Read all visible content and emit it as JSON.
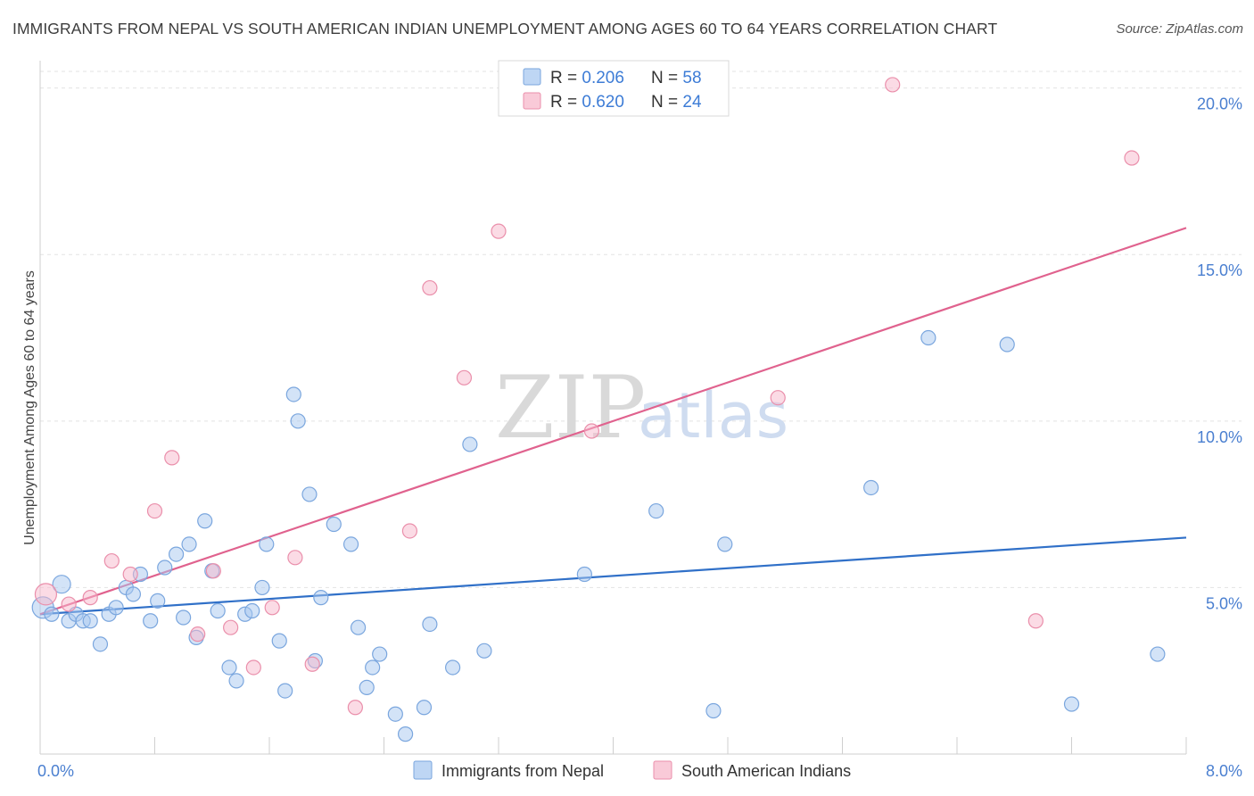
{
  "title": "IMMIGRANTS FROM NEPAL VS SOUTH AMERICAN INDIAN UNEMPLOYMENT AMONG AGES 60 TO 64 YEARS CORRELATION CHART",
  "source": "Source: ZipAtlas.com",
  "watermark": {
    "zip": "ZIP",
    "atlas": "atlas"
  },
  "chart_data": {
    "type": "scatter",
    "ylabel": "Unemployment Among Ages 60 to 64 years",
    "xlim": [
      0,
      8
    ],
    "ylim": [
      0,
      20.5
    ],
    "x_tick_labels": [
      {
        "value": 0,
        "label": "0.0%"
      },
      {
        "value": 8,
        "label": "8.0%"
      }
    ],
    "y_tick_labels": [
      {
        "value": 5,
        "label": "5.0%"
      },
      {
        "value": 10,
        "label": "10.0%"
      },
      {
        "value": 15,
        "label": "15.0%"
      },
      {
        "value": 20,
        "label": "20.0%"
      }
    ],
    "legend": [
      {
        "r_label": "R = ",
        "r": "0.206",
        "n_label": "N = ",
        "n": "58",
        "color": "#a8c8f0"
      },
      {
        "r_label": "R = ",
        "r": "0.620",
        "n_label": "N = ",
        "n": "24",
        "color": "#f7b8cb"
      }
    ],
    "series": [
      {
        "name": "Immigrants from Nepal",
        "color": "#a8c8f0",
        "stroke": "#7aa6de",
        "line_color": "#3070c8",
        "trend": [
          [
            0,
            4.2
          ],
          [
            8,
            6.5
          ]
        ],
        "points": [
          [
            0.02,
            4.4
          ],
          [
            0.08,
            4.2
          ],
          [
            0.15,
            5.1
          ],
          [
            0.2,
            4.0
          ],
          [
            0.25,
            4.2
          ],
          [
            0.3,
            4.0
          ],
          [
            0.35,
            4.0
          ],
          [
            0.42,
            3.3
          ],
          [
            0.48,
            4.2
          ],
          [
            0.53,
            4.4
          ],
          [
            0.6,
            5.0
          ],
          [
            0.65,
            4.8
          ],
          [
            0.7,
            5.4
          ],
          [
            0.77,
            4.0
          ],
          [
            0.82,
            4.6
          ],
          [
            0.87,
            5.6
          ],
          [
            0.95,
            6.0
          ],
          [
            1.0,
            4.1
          ],
          [
            1.04,
            6.3
          ],
          [
            1.09,
            3.5
          ],
          [
            1.15,
            7.0
          ],
          [
            1.2,
            5.5
          ],
          [
            1.24,
            4.3
          ],
          [
            1.32,
            2.6
          ],
          [
            1.37,
            2.2
          ],
          [
            1.43,
            4.2
          ],
          [
            1.48,
            4.3
          ],
          [
            1.55,
            5.0
          ],
          [
            1.58,
            6.3
          ],
          [
            1.67,
            3.4
          ],
          [
            1.71,
            1.9
          ],
          [
            1.77,
            10.8
          ],
          [
            1.8,
            10.0
          ],
          [
            1.88,
            7.8
          ],
          [
            1.92,
            2.8
          ],
          [
            1.96,
            4.7
          ],
          [
            2.05,
            6.9
          ],
          [
            2.17,
            6.3
          ],
          [
            2.22,
            3.8
          ],
          [
            2.28,
            2.0
          ],
          [
            2.32,
            2.6
          ],
          [
            2.37,
            3.0
          ],
          [
            2.48,
            1.2
          ],
          [
            2.55,
            0.6
          ],
          [
            2.68,
            1.4
          ],
          [
            2.72,
            3.9
          ],
          [
            2.88,
            2.6
          ],
          [
            3.0,
            9.3
          ],
          [
            3.1,
            3.1
          ],
          [
            3.8,
            5.4
          ],
          [
            4.3,
            7.3
          ],
          [
            4.7,
            1.3
          ],
          [
            4.78,
            6.3
          ],
          [
            5.8,
            8.0
          ],
          [
            6.2,
            12.5
          ],
          [
            6.75,
            12.3
          ],
          [
            7.2,
            1.5
          ],
          [
            7.8,
            3.0
          ]
        ]
      },
      {
        "name": "South American Indians",
        "color": "#f7b8cb",
        "stroke": "#ea8fab",
        "line_color": "#e0628e",
        "trend": [
          [
            0,
            4.2
          ],
          [
            8,
            15.8
          ]
        ],
        "points": [
          [
            0.04,
            4.8
          ],
          [
            0.2,
            4.5
          ],
          [
            0.35,
            4.7
          ],
          [
            0.5,
            5.8
          ],
          [
            0.63,
            5.4
          ],
          [
            0.8,
            7.3
          ],
          [
            0.92,
            8.9
          ],
          [
            1.1,
            3.6
          ],
          [
            1.21,
            5.5
          ],
          [
            1.33,
            3.8
          ],
          [
            1.49,
            2.6
          ],
          [
            1.62,
            4.4
          ],
          [
            1.78,
            5.9
          ],
          [
            1.9,
            2.7
          ],
          [
            2.2,
            1.4
          ],
          [
            2.58,
            6.7
          ],
          [
            2.72,
            14.0
          ],
          [
            2.96,
            11.3
          ],
          [
            3.2,
            15.7
          ],
          [
            3.85,
            9.7
          ],
          [
            5.15,
            10.7
          ],
          [
            5.95,
            20.1
          ],
          [
            6.95,
            4.0
          ],
          [
            7.62,
            17.9
          ]
        ]
      }
    ]
  }
}
